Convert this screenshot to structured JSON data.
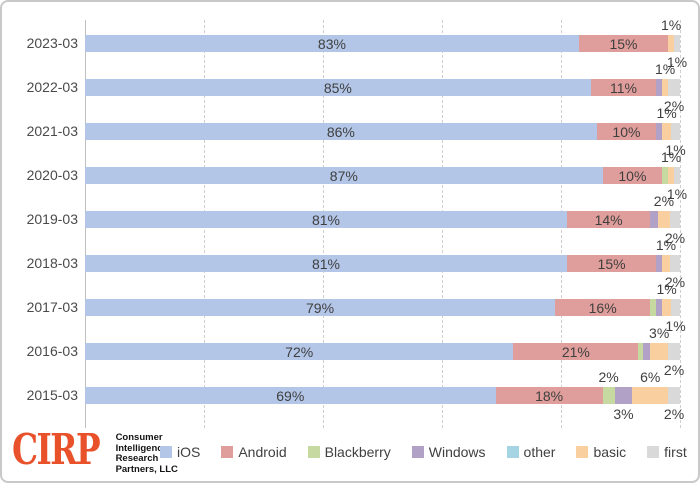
{
  "chart_data": {
    "type": "bar",
    "stacked": true,
    "orientation": "horizontal",
    "title": "",
    "xlabel": "",
    "ylabel": "",
    "xlim": [
      0,
      100
    ],
    "unit": "percent",
    "grid": true,
    "gridline_pcts": [
      0,
      20,
      40,
      60,
      80,
      100
    ],
    "legend_position": "bottom",
    "series_order": [
      "iOS",
      "Android",
      "Blackberry",
      "Windows",
      "other",
      "basic",
      "first"
    ],
    "colors": {
      "iOS": "#b3c6e7",
      "Android": "#df9e9b",
      "Blackberry": "#c6d9a0",
      "Windows": "#b2a1c7",
      "other": "#a5d5e2",
      "basic": "#f9cf9f",
      "first": "#d9d9d9"
    },
    "categories": [
      "2023-03",
      "2022-03",
      "2021-03",
      "2020-03",
      "2019-03",
      "2018-03",
      "2017-03",
      "2016-03",
      "2015-03"
    ],
    "rows": [
      {
        "category": "2023-03",
        "segments": [
          {
            "series": "iOS",
            "pct": 83,
            "label": "83%",
            "label_pos": "inside"
          },
          {
            "series": "Android",
            "pct": 15,
            "label": "15%",
            "label_pos": "inside"
          },
          {
            "series": "basic",
            "pct": 1,
            "label": "1%",
            "label_pos": "above"
          },
          {
            "series": "first",
            "pct": 1,
            "label": "1%",
            "label_pos": "below"
          }
        ]
      },
      {
        "category": "2022-03",
        "segments": [
          {
            "series": "iOS",
            "pct": 85,
            "label": "85%",
            "label_pos": "inside"
          },
          {
            "series": "Android",
            "pct": 11,
            "label": "11%",
            "label_pos": "inside"
          },
          {
            "series": "Windows",
            "pct": 1,
            "label": null,
            "label_pos": "none"
          },
          {
            "series": "basic",
            "pct": 1,
            "label": "1%",
            "label_pos": "above"
          },
          {
            "series": "first",
            "pct": 2,
            "label": "2%",
            "label_pos": "below"
          }
        ]
      },
      {
        "category": "2021-03",
        "segments": [
          {
            "series": "iOS",
            "pct": 86,
            "label": "86%",
            "label_pos": "inside"
          },
          {
            "series": "Android",
            "pct": 10,
            "label": "10%",
            "label_pos": "inside"
          },
          {
            "series": "Windows",
            "pct": 1,
            "label": null,
            "label_pos": "none"
          },
          {
            "series": "basic",
            "pct": 1.5,
            "label": "1%",
            "label_pos": "above"
          },
          {
            "series": "first",
            "pct": 1.5,
            "label": "1%",
            "label_pos": "below"
          }
        ]
      },
      {
        "category": "2020-03",
        "segments": [
          {
            "series": "iOS",
            "pct": 87,
            "label": "87%",
            "label_pos": "inside"
          },
          {
            "series": "Android",
            "pct": 10,
            "label": "10%",
            "label_pos": "inside"
          },
          {
            "series": "Blackberry",
            "pct": 1,
            "label": null,
            "label_pos": "none"
          },
          {
            "series": "basic",
            "pct": 1,
            "label": "1%",
            "label_pos": "above"
          },
          {
            "series": "first",
            "pct": 1,
            "label": "1%",
            "label_pos": "below"
          }
        ]
      },
      {
        "category": "2019-03",
        "segments": [
          {
            "series": "iOS",
            "pct": 81,
            "label": "81%",
            "label_pos": "inside"
          },
          {
            "series": "Android",
            "pct": 14,
            "label": "14%",
            "label_pos": "inside"
          },
          {
            "series": "Windows",
            "pct": 1.3,
            "label": null,
            "label_pos": "none"
          },
          {
            "series": "basic",
            "pct": 2,
            "label": "2%",
            "label_pos": "above"
          },
          {
            "series": "first",
            "pct": 1.7,
            "label": "2%",
            "label_pos": "below"
          }
        ]
      },
      {
        "category": "2018-03",
        "segments": [
          {
            "series": "iOS",
            "pct": 81,
            "label": "81%",
            "label_pos": "inside"
          },
          {
            "series": "Android",
            "pct": 15,
            "label": "15%",
            "label_pos": "inside"
          },
          {
            "series": "Windows",
            "pct": 1,
            "label": null,
            "label_pos": "none"
          },
          {
            "series": "basic",
            "pct": 1.3,
            "label": "1%",
            "label_pos": "above"
          },
          {
            "series": "first",
            "pct": 1.7,
            "label": "2%",
            "label_pos": "below"
          }
        ]
      },
      {
        "category": "2017-03",
        "segments": [
          {
            "series": "iOS",
            "pct": 79,
            "label": "79%",
            "label_pos": "inside"
          },
          {
            "series": "Android",
            "pct": 16,
            "label": "16%",
            "label_pos": "inside"
          },
          {
            "series": "Blackberry",
            "pct": 1,
            "label": null,
            "label_pos": "none"
          },
          {
            "series": "Windows",
            "pct": 1,
            "label": null,
            "label_pos": "none"
          },
          {
            "series": "basic",
            "pct": 1.5,
            "label": "1%",
            "label_pos": "above"
          },
          {
            "series": "first",
            "pct": 1.5,
            "label": "1%",
            "label_pos": "below"
          }
        ]
      },
      {
        "category": "2016-03",
        "segments": [
          {
            "series": "iOS",
            "pct": 72,
            "label": "72%",
            "label_pos": "inside"
          },
          {
            "series": "Android",
            "pct": 21,
            "label": "21%",
            "label_pos": "inside"
          },
          {
            "series": "Blackberry",
            "pct": 0.8,
            "label": null,
            "label_pos": "none"
          },
          {
            "series": "Windows",
            "pct": 1.2,
            "label": null,
            "label_pos": "none"
          },
          {
            "series": "basic",
            "pct": 3,
            "label": "3%",
            "label_pos": "above"
          },
          {
            "series": "first",
            "pct": 2,
            "label": "2%",
            "label_pos": "below"
          }
        ]
      },
      {
        "category": "2015-03",
        "segments": [
          {
            "series": "iOS",
            "pct": 69,
            "label": "69%",
            "label_pos": "inside"
          },
          {
            "series": "Android",
            "pct": 18,
            "label": "18%",
            "label_pos": "inside"
          },
          {
            "series": "Blackberry",
            "pct": 2,
            "label": "2%",
            "label_pos": "above"
          },
          {
            "series": "Windows",
            "pct": 3,
            "label": "3%",
            "label_pos": "below"
          },
          {
            "series": "basic",
            "pct": 6,
            "label": "6%",
            "label_pos": "above"
          },
          {
            "series": "first",
            "pct": 2,
            "label": "2%",
            "label_pos": "below"
          }
        ]
      }
    ]
  },
  "legend": {
    "items": [
      {
        "key": "iOS",
        "label": "iOS",
        "color": "#b3c6e7"
      },
      {
        "key": "Android",
        "label": "Android",
        "color": "#df9e9b"
      },
      {
        "key": "Blackberry",
        "label": "Blackberry",
        "color": "#c6d9a0"
      },
      {
        "key": "Windows",
        "label": "Windows",
        "color": "#b2a1c7"
      },
      {
        "key": "other",
        "label": "other",
        "color": "#a5d5e2"
      },
      {
        "key": "basic",
        "label": "basic",
        "color": "#f9cf9f"
      },
      {
        "key": "first",
        "label": "first",
        "color": "#d9d9d9"
      }
    ]
  },
  "logo": {
    "brand": "CIRP",
    "brand_color": "#e8512a",
    "lines": [
      "Consumer",
      "Intelligence",
      "Research",
      "Partners, LLC"
    ]
  }
}
